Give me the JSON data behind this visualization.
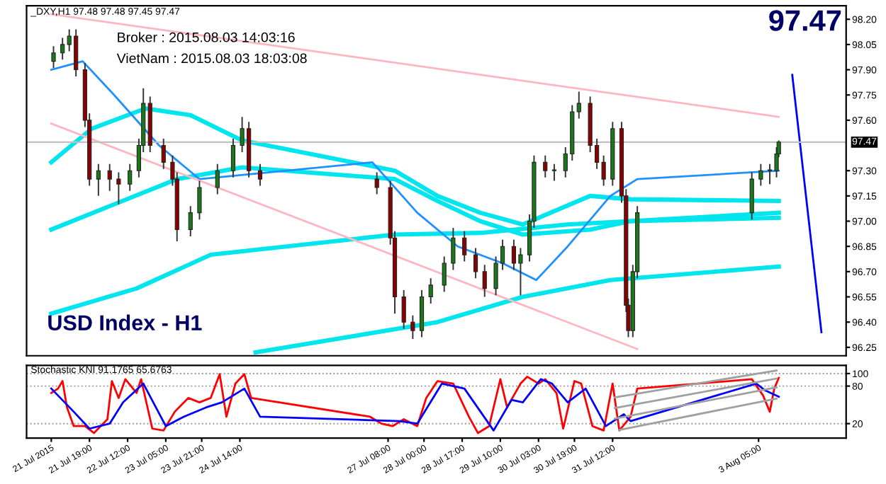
{
  "chart_data": [
    {
      "type": "candlestick",
      "title": "_DXY,H1 97.48 97.48 97.45 97.47",
      "x": [
        "2015-07-21T03:00",
        "2015-07-21T07:00",
        "2015-07-21T10:00",
        "2015-07-21T13:00",
        "2015-07-21T17:00",
        "2015-07-21T19:00",
        "2015-07-21T23:00",
        "2015-07-22T04:00",
        "2015-07-22T08:00",
        "2015-07-22T13:00",
        "2015-07-22T17:00",
        "2015-07-22T19:00",
        "2015-07-22T22:00",
        "2015-07-23T04:00",
        "2015-07-23T08:00",
        "2015-07-23T10:00",
        "2015-07-23T16:00",
        "2015-07-23T20:00",
        "2015-07-24T04:00",
        "2015-07-24T11:00",
        "2015-07-24T15:00",
        "2015-07-24T18:00",
        "2015-07-24T23:00",
        "2015-07-27T03:00",
        "2015-07-27T09:00",
        "2015-07-27T11:00",
        "2015-07-27T15:00",
        "2015-07-27T19:00",
        "2015-07-27T23:00",
        "2015-07-28T03:00",
        "2015-07-28T09:00",
        "2015-07-28T13:00",
        "2015-07-28T18:00",
        "2015-07-28T23:00",
        "2015-07-29T03:00",
        "2015-07-29T08:00",
        "2015-07-29T11:00",
        "2015-07-29T16:00",
        "2015-07-29T19:00",
        "2015-07-29T23:00",
        "2015-07-30T01:00",
        "2015-07-30T06:00",
        "2015-07-30T10:00",
        "2015-07-30T15:00",
        "2015-07-30T18:00",
        "2015-07-30T21:00",
        "2015-07-31T02:00",
        "2015-07-31T05:00",
        "2015-07-31T08:00",
        "2015-07-31T12:00",
        "2015-07-31T16:00",
        "2015-07-31T18:00",
        "2015-07-31T19:00",
        "2015-07-31T21:00",
        "2015-07-31T23:00",
        "2015-08-03T02:00",
        "2015-08-03T06:00",
        "2015-08-03T10:00",
        "2015-08-03T13:00",
        "2015-08-03T14:00"
      ],
      "ohlc": [
        [
          97.95,
          98.04,
          97.91,
          98.0
        ],
        [
          98.0,
          98.09,
          97.96,
          98.05
        ],
        [
          98.05,
          98.14,
          98.01,
          98.1
        ],
        [
          98.1,
          98.14,
          97.86,
          97.9
        ],
        [
          97.9,
          97.94,
          97.56,
          97.6
        ],
        [
          97.6,
          97.64,
          97.21,
          97.25
        ],
        [
          97.25,
          97.34,
          97.15,
          97.3
        ],
        [
          97.3,
          97.34,
          97.18,
          97.25
        ],
        [
          97.25,
          97.29,
          97.1,
          97.22
        ],
        [
          97.22,
          97.34,
          97.18,
          97.3
        ],
        [
          97.3,
          97.49,
          97.26,
          97.45
        ],
        [
          97.45,
          97.79,
          97.41,
          97.7
        ],
        [
          97.7,
          97.74,
          97.41,
          97.45
        ],
        [
          97.45,
          97.49,
          97.31,
          97.35
        ],
        [
          97.35,
          97.39,
          97.21,
          97.25
        ],
        [
          97.25,
          97.29,
          96.88,
          96.95
        ],
        [
          96.95,
          97.09,
          96.91,
          97.05
        ],
        [
          97.05,
          97.24,
          97.01,
          97.2
        ],
        [
          97.2,
          97.34,
          97.16,
          97.3
        ],
        [
          97.3,
          97.49,
          97.26,
          97.45
        ],
        [
          97.45,
          97.62,
          97.41,
          97.55
        ],
        [
          97.55,
          97.59,
          97.26,
          97.3
        ],
        [
          97.3,
          97.34,
          97.21,
          97.25
        ],
        [
          97.25,
          97.29,
          97.16,
          97.2
        ],
        [
          97.2,
          97.24,
          96.86,
          96.9
        ],
        [
          96.9,
          96.94,
          96.45,
          96.55
        ],
        [
          96.55,
          96.59,
          96.36,
          96.4
        ],
        [
          96.4,
          96.44,
          96.3,
          96.35
        ],
        [
          96.35,
          96.59,
          96.31,
          96.55
        ],
        [
          96.55,
          96.66,
          96.51,
          96.62
        ],
        [
          96.62,
          96.79,
          96.58,
          96.75
        ],
        [
          96.75,
          96.96,
          96.71,
          96.9
        ],
        [
          96.9,
          96.94,
          96.76,
          96.8
        ],
        [
          96.8,
          96.84,
          96.66,
          96.7
        ],
        [
          96.7,
          96.74,
          96.55,
          96.6
        ],
        [
          96.6,
          96.79,
          96.56,
          96.75
        ],
        [
          96.75,
          96.89,
          96.71,
          96.85
        ],
        [
          96.85,
          96.89,
          96.71,
          96.75
        ],
        [
          96.75,
          96.84,
          96.56,
          96.8
        ],
        [
          96.8,
          97.04,
          96.76,
          97.0
        ],
        [
          97.0,
          97.39,
          96.96,
          97.35
        ],
        [
          97.35,
          97.39,
          97.26,
          97.3
        ],
        [
          97.3,
          97.34,
          97.24,
          97.3
        ],
        [
          97.3,
          97.44,
          97.26,
          97.4
        ],
        [
          97.4,
          97.69,
          97.36,
          97.65
        ],
        [
          97.65,
          97.77,
          97.61,
          97.7
        ],
        [
          97.7,
          97.74,
          97.41,
          97.45
        ],
        [
          97.45,
          97.49,
          97.31,
          97.35
        ],
        [
          97.35,
          97.39,
          97.21,
          97.25
        ],
        [
          97.25,
          97.59,
          97.21,
          97.55
        ],
        [
          97.55,
          97.59,
          97.11,
          97.15
        ],
        [
          97.15,
          97.19,
          96.46,
          96.5
        ],
        [
          96.5,
          96.54,
          96.31,
          96.35
        ],
        [
          96.35,
          96.74,
          96.31,
          96.7
        ],
        [
          96.7,
          97.09,
          96.66,
          97.05
        ],
        [
          97.05,
          97.29,
          97.01,
          97.25
        ],
        [
          97.25,
          97.34,
          97.21,
          97.3
        ],
        [
          97.3,
          97.34,
          97.22,
          97.3
        ],
        [
          97.3,
          97.44,
          97.26,
          97.4
        ],
        [
          97.4,
          97.48,
          97.38,
          97.47
        ]
      ],
      "series": [
        {
          "type": "line",
          "color": "#00e5ee",
          "x": [
            "2015-07-21T02:00",
            "2015-07-22T06:00",
            "2015-07-23T10:00",
            "2015-07-24T15:00",
            "2015-07-27T11:00",
            "2015-07-28T06:00",
            "2015-07-29T01:00",
            "2015-07-29T20:00",
            "2015-07-31T02:00",
            "2015-07-31T20:00",
            "2015-08-03T14:00"
          ],
          "values": [
            96.95,
            97.1,
            97.25,
            97.32,
            97.25,
            97.12,
            97.0,
            96.92,
            96.95,
            97.0,
            97.02
          ]
        },
        {
          "type": "line",
          "color": "#00e5ee",
          "x": [
            "2015-07-21T02:00",
            "2015-07-22T16:00",
            "2015-07-24T01:00",
            "2015-07-27T11:00",
            "2015-07-29T01:00",
            "2015-07-30T16:00",
            "2015-07-31T20:00",
            "2015-08-03T14:00"
          ],
          "values": [
            96.45,
            96.6,
            96.8,
            96.92,
            96.93,
            96.98,
            97.0,
            97.05
          ]
        },
        {
          "type": "line",
          "color": "#00e5ee",
          "x": [
            "2015-07-24T21:00",
            "2015-07-28T06:00",
            "2015-07-29T20:00",
            "2015-07-31T11:00",
            "2015-08-03T14:00"
          ],
          "values": [
            96.22,
            96.4,
            96.55,
            96.65,
            96.73
          ]
        },
        {
          "type": "line",
          "color": "#00e5ee",
          "x": [
            "2015-07-21T02:00",
            "2015-07-21T20:00",
            "2015-07-22T20:00",
            "2015-07-23T16:00",
            "2015-07-24T15:00",
            "2015-07-27T11:00",
            "2015-07-28T06:00",
            "2015-07-29T01:00",
            "2015-07-29T20:00",
            "2015-07-31T02:00",
            "2015-07-31T20:00",
            "2015-08-03T14:00"
          ],
          "values": [
            97.35,
            97.55,
            97.67,
            97.63,
            97.48,
            97.3,
            97.15,
            97.05,
            96.98,
            97.15,
            97.13,
            97.12
          ]
        },
        {
          "type": "line",
          "color": "#1e90ff",
          "x": [
            "2015-07-21T02:00",
            "2015-07-21T16:00",
            "2015-07-22T06:00",
            "2015-07-23T02:00",
            "2015-07-23T20:00",
            "2015-07-27T01:00",
            "2015-07-27T21:00",
            "2015-07-28T15:00",
            "2015-07-29T11:00",
            "2015-07-30T02:00",
            "2015-07-30T16:00",
            "2015-07-31T11:00",
            "2015-07-31T23:00",
            "2015-08-03T14:00"
          ],
          "values": [
            97.9,
            97.95,
            97.75,
            97.45,
            97.25,
            97.35,
            97.05,
            96.85,
            96.75,
            96.65,
            96.85,
            97.15,
            97.25,
            97.3
          ]
        },
        {
          "type": "line",
          "color": "#ffb6c1",
          "x": [
            "2015-07-21T02:00",
            "2015-08-03T14:00"
          ],
          "values": [
            98.23,
            97.62
          ]
        },
        {
          "type": "line",
          "color": "#ffb6c1",
          "x": [
            "2015-07-21T02:00",
            "2015-07-31T23:00"
          ],
          "values": [
            97.58,
            96.24
          ]
        },
        {
          "type": "line",
          "color": "#0000ff",
          "x": [
            "2015-08-03T20:00",
            "2015-08-04T09:00"
          ],
          "values": [
            97.87,
            96.34
          ]
        }
      ],
      "ref_lines": [
        {
          "axis": "y",
          "value": 97.47,
          "label": "97.47",
          "color": "#c0c0c0"
        }
      ],
      "annotations": [
        "Broker : 2015.08.03 14:03:16",
        "VietNam : 2015.08.03 18:03:08",
        "USD Index - H1",
        "97.47"
      ],
      "xlim": [
        "2015-07-20T15:00",
        "2015-08-04T20:00"
      ],
      "ylim": [
        96.2,
        98.28
      ],
      "yticks": [
        {
          "value": 96.25,
          "label": "96.25"
        },
        {
          "value": 96.4,
          "label": "96.40"
        },
        {
          "value": 96.55,
          "label": "96.55"
        },
        {
          "value": 96.7,
          "label": "96.70"
        },
        {
          "value": 96.85,
          "label": "96.85"
        },
        {
          "value": 97.0,
          "label": "97.00"
        },
        {
          "value": 97.15,
          "label": "97.15"
        },
        {
          "value": 97.3,
          "label": "97.30"
        },
        {
          "value": 97.6,
          "label": "97.60"
        },
        {
          "value": 97.75,
          "label": "97.75"
        },
        {
          "value": 97.9,
          "label": "97.90"
        },
        {
          "value": 98.05,
          "label": "98.05"
        },
        {
          "value": 98.2,
          "label": "98.20"
        }
      ],
      "tick_labels": "y"
    },
    {
      "type": "line",
      "title": "Stochastic KNI 91.1765 65.6763",
      "series": [
        {
          "color": "#ff0000",
          "x": [
            "2015-07-21T02:00",
            "2015-07-21T05:00",
            "2015-07-21T07:00",
            "2015-07-21T09:00",
            "2015-07-21T12:00",
            "2015-07-21T17:00",
            "2015-07-21T21:00",
            "2015-07-22T03:00",
            "2015-07-22T05:00",
            "2015-07-22T08:00",
            "2015-07-22T11:00",
            "2015-07-22T16:00",
            "2015-07-22T18:00",
            "2015-07-22T23:00",
            "2015-07-23T04:00",
            "2015-07-23T09:00",
            "2015-07-23T15:00",
            "2015-07-23T20:00",
            "2015-07-24T01:00",
            "2015-07-24T05:00",
            "2015-07-24T08:00",
            "2015-07-24T12:00",
            "2015-07-24T16:00",
            "2015-07-24T19:00",
            "2015-07-27T00:00",
            "2015-07-27T05:00",
            "2015-07-27T10:00",
            "2015-07-27T15:00",
            "2015-07-27T21:00",
            "2015-07-28T01:00",
            "2015-07-28T06:00",
            "2015-07-28T13:00",
            "2015-07-28T20:00",
            "2015-07-29T00:00",
            "2015-07-29T05:00",
            "2015-07-29T10:00",
            "2015-07-29T13:00",
            "2015-07-29T19:00",
            "2015-07-29T22:00",
            "2015-07-30T03:00",
            "2015-07-30T06:00",
            "2015-07-30T11:00",
            "2015-07-30T14:00",
            "2015-07-30T19:00",
            "2015-07-30T22:00",
            "2015-07-31T03:00",
            "2015-07-31T08:00",
            "2015-07-31T12:00",
            "2015-07-31T15:00",
            "2015-07-31T20:00",
            "2015-07-31T23:00",
            "2015-08-03T02:00",
            "2015-08-03T07:00",
            "2015-08-03T10:00",
            "2015-08-03T12:00",
            "2015-08-03T14:00"
          ],
          "values": [
            69,
            76,
            88,
            46,
            16,
            16,
            5,
            27,
            88,
            61,
            91,
            69,
            91,
            12,
            9,
            39,
            61,
            54,
            61,
            99,
            31,
            84,
            99,
            61,
            31,
            20,
            16,
            27,
            16,
            61,
            88,
            84,
            31,
            5,
            16,
            91,
            46,
            84,
            95,
            84,
            91,
            69,
            12,
            88,
            84,
            16,
            9,
            84,
            9,
            31,
            76,
            91,
            65,
            39,
            76,
            93
          ]
        },
        {
          "color": "#0000ff",
          "x": [
            "2015-07-21T02:00",
            "2015-07-21T12:00",
            "2015-07-21T19:00",
            "2015-07-22T04:00",
            "2015-07-22T10:00",
            "2015-07-22T19:00",
            "2015-07-23T05:00",
            "2015-07-23T13:00",
            "2015-07-23T23:00",
            "2015-07-24T06:00",
            "2015-07-24T16:00",
            "2015-07-24T23:00",
            "2015-07-27T13:00",
            "2015-07-27T21:00",
            "2015-07-28T08:00",
            "2015-07-28T18:00",
            "2015-07-29T07:00",
            "2015-07-29T15:00",
            "2015-07-29T20:00",
            "2015-07-30T04:00",
            "2015-07-30T09:00",
            "2015-07-30T16:00",
            "2015-07-31T00:00",
            "2015-07-31T09:00",
            "2015-07-31T17:00",
            "2015-07-31T20:00",
            "2015-08-03T04:00",
            "2015-08-03T08:00",
            "2015-08-03T14:00"
          ],
          "values": [
            76,
            39,
            12,
            20,
            54,
            84,
            16,
            31,
            46,
            54,
            76,
            31,
            24,
            20,
            84,
            76,
            9,
            58,
            54,
            91,
            84,
            54,
            76,
            16,
            35,
            24,
            84,
            73,
            63
          ]
        },
        {
          "color": "#a0a0a0",
          "x": [
            "2015-07-31T13:00",
            "2015-08-03T13:00"
          ],
          "values": [
            62,
            105
          ]
        },
        {
          "color": "#a0a0a0",
          "x": [
            "2015-07-31T13:00",
            "2015-08-03T13:00"
          ],
          "values": [
            45,
            92
          ]
        },
        {
          "color": "#a0a0a0",
          "x": [
            "2015-07-31T13:00",
            "2015-08-03T13:00"
          ],
          "values": [
            28,
            78
          ]
        },
        {
          "color": "#a0a0a0",
          "x": [
            "2015-07-31T15:00",
            "2015-08-03T13:00"
          ],
          "values": [
            10,
            60
          ]
        }
      ],
      "xlim": [
        "2015-07-20T15:00",
        "2015-08-04T20:00"
      ],
      "ylim": [
        -3,
        113
      ],
      "xticks": [
        {
          "value": "2015-07-21T02:00",
          "label": "21 Jul 2015"
        },
        {
          "value": "2015-07-21T19:00",
          "label": "21 Jul 19:00"
        },
        {
          "value": "2015-07-22T12:00",
          "label": "22 Jul 12:00"
        },
        {
          "value": "2015-07-23T05:00",
          "label": "23 Jul 05:00"
        },
        {
          "value": "2015-07-23T21:00",
          "label": "23 Jul 21:00"
        },
        {
          "value": "2015-07-24T14:00",
          "label": "24 Jul 14:00"
        },
        {
          "value": "2015-07-27T08:00",
          "label": "27 Jul 08:00"
        },
        {
          "value": "2015-07-28T00:00",
          "label": "28 Jul 00:00"
        },
        {
          "value": "2015-07-28T17:00",
          "label": "28 Jul 17:00"
        },
        {
          "value": "2015-07-29T10:00",
          "label": "29 Jul 10:00"
        },
        {
          "value": "2015-07-30T03:00",
          "label": "30 Jul 03:00"
        },
        {
          "value": "2015-07-30T19:00",
          "label": "30 Jul 19:00"
        },
        {
          "value": "2015-07-31T12:00",
          "label": "31 Jul 12:00"
        },
        {
          "value": "2015-08-03T05:00",
          "label": "3 Aug 05:00"
        }
      ],
      "yticks": [
        20,
        80,
        100
      ],
      "grid": "y"
    }
  ]
}
